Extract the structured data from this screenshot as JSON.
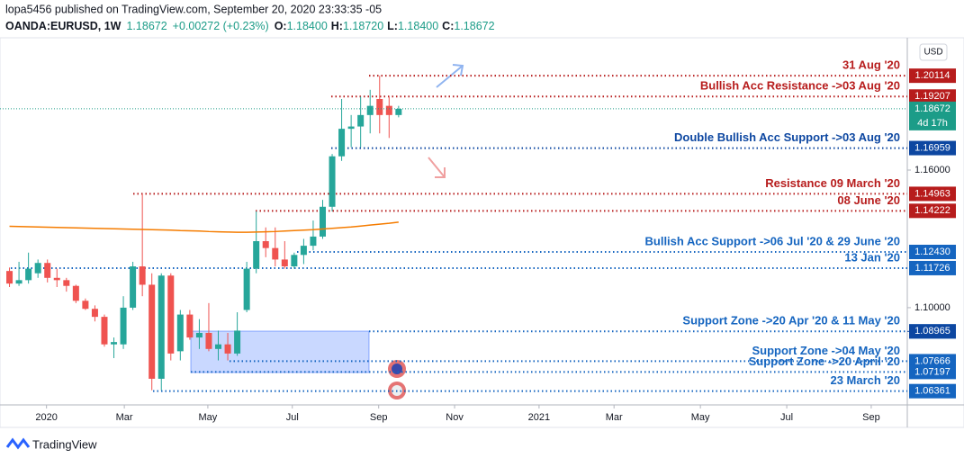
{
  "header": {
    "publisher": "lopa5456 published on TradingView.com, September 20, 2020 23:33:35 -05",
    "symbol": "OANDA:EURUSD, 1W",
    "last": "1.18672",
    "change": "+0.00272 (+0.23%)",
    "open_label": "O:",
    "open": "1.18400",
    "high_label": "H:",
    "high": "1.18720",
    "low_label": "L:",
    "low": "1.18400",
    "close_label": "C:",
    "close": "1.18672",
    "currency": "USD"
  },
  "footer": {
    "brand": "TradingView"
  },
  "chart_data": {
    "type": "candlestick",
    "open": [
      1.116,
      1.1105,
      1.112,
      1.115,
      1.1195,
      1.113,
      1.112,
      1.1095,
      1.103,
      1.0995,
      1.096,
      1.084,
      1.084,
      1.1,
      1.118,
      1.11,
      1.069,
      1.114,
      1.081,
      1.097,
      1.087,
      1.089,
      1.082,
      1.084,
      1.08,
      1.099,
      1.117,
      1.129,
      1.126,
      1.121,
      1.118,
      1.123,
      1.127,
      1.131,
      1.144,
      1.166,
      1.178,
      1.179,
      1.184,
      1.191,
      1.188,
      1.184
    ],
    "high": [
      1.1175,
      1.12,
      1.124,
      1.121,
      1.121,
      1.117,
      1.113,
      1.11,
      1.104,
      1.101,
      1.097,
      1.087,
      1.105,
      1.12,
      1.1495,
      1.115,
      1.115,
      1.115,
      1.099,
      1.099,
      1.095,
      1.102,
      1.09,
      1.089,
      1.098,
      1.12,
      1.142,
      1.135,
      1.135,
      1.129,
      1.124,
      1.13,
      1.138,
      1.147,
      1.167,
      1.191,
      1.184,
      1.192,
      1.195,
      1.2011,
      1.192,
      1.188
    ],
    "low": [
      1.109,
      1.1095,
      1.1105,
      1.113,
      1.111,
      1.109,
      1.107,
      1.102,
      1.099,
      1.094,
      1.083,
      1.078,
      1.082,
      1.099,
      1.105,
      1.064,
      1.064,
      1.077,
      1.077,
      1.086,
      1.082,
      1.081,
      1.077,
      1.077,
      1.079,
      1.098,
      1.115,
      1.122,
      1.118,
      1.117,
      1.117,
      1.119,
      1.125,
      1.13,
      1.142,
      1.164,
      1.17,
      1.17,
      1.176,
      1.176,
      1.174,
      1.183
    ],
    "close": [
      1.1105,
      1.112,
      1.117,
      1.1195,
      1.113,
      1.112,
      1.1095,
      1.103,
      1.0995,
      1.096,
      1.084,
      1.085,
      1.1,
      1.118,
      1.11,
      1.069,
      1.114,
      1.08,
      1.097,
      1.087,
      1.089,
      1.082,
      1.084,
      1.08,
      1.09,
      1.117,
      1.129,
      1.126,
      1.121,
      1.118,
      1.123,
      1.127,
      1.131,
      1.144,
      1.166,
      1.178,
      1.179,
      1.184,
      1.188,
      1.184,
      1.184,
      1.1867
    ],
    "ma": [
      1.1355,
      1.1354,
      1.1353,
      1.1352,
      1.1351,
      1.135,
      1.1349,
      1.1348,
      1.1347,
      1.1346,
      1.1345,
      1.1344,
      1.1343,
      1.1342,
      1.1341,
      1.134,
      1.1339,
      1.1338,
      1.1336,
      1.1335,
      1.1334,
      1.1332,
      1.1331,
      1.133,
      1.1329,
      1.1329,
      1.133,
      1.1331,
      1.1332,
      1.1334,
      1.1336,
      1.1338,
      1.134,
      1.1343,
      1.1346,
      1.1349,
      1.1352,
      1.1356,
      1.136,
      1.1364,
      1.1368,
      1.1373
    ],
    "up_color": "#26a69a",
    "down_color": "#ef5350",
    "ma_color": "#f57c00",
    "ylim": [
      1.0576,
      1.2165
    ],
    "xlim": [
      -1,
      94.6
    ],
    "yticks": [
      {
        "value": 1.16,
        "label": "1.16000"
      },
      {
        "value": 1.1,
        "label": "1.10000"
      }
    ],
    "xticks": [
      {
        "value": 3.9,
        "label": "2020"
      },
      {
        "value": 12.1,
        "label": "Mar"
      },
      {
        "value": 20.9,
        "label": "May"
      },
      {
        "value": 29.8,
        "label": "Jul"
      },
      {
        "value": 38.9,
        "label": "Sep"
      },
      {
        "value": 46.9,
        "label": "Nov"
      },
      {
        "value": 55.8,
        "label": "2021"
      },
      {
        "value": 63.7,
        "label": "Mar"
      },
      {
        "value": 72.8,
        "label": "May"
      },
      {
        "value": 81.9,
        "label": "Jul"
      },
      {
        "value": 90.8,
        "label": "Sep"
      }
    ],
    "current": {
      "value": 1.18672,
      "color": "#1c9c88",
      "countdown": "4d 17h"
    },
    "levels": [
      {
        "value": 1.20114,
        "text": "31 Aug '20",
        "color": "#b71c1c"
      },
      {
        "value": 1.19207,
        "text": "Bullish Acc Resistance ->03 Aug '20",
        "color": "#b71c1c"
      },
      {
        "value": 1.16959,
        "text": "Double Bullish Acc Support ->03 Aug '20",
        "color": "#0d47a1"
      },
      {
        "value": 1.14963,
        "text": "Resistance 09 March '20",
        "color": "#b71c1c"
      },
      {
        "value": 1.14222,
        "text": "08 June '20",
        "color": "#b71c1c"
      },
      {
        "value": 1.1243,
        "tag": "1.12430",
        "text": "Bullish Acc Support ->06 Jul '20 & 29 June '20",
        "color": "#1565c0"
      },
      {
        "value": 1.11726,
        "text": "13 Jan '20",
        "color": "#1565c0"
      },
      {
        "value": 1.08968,
        "text": "Support Zone ->20 Apr '20  & 11 May '20",
        "color": "#1565c0"
      },
      {
        "value": 1.08965,
        "color": "#0d47a1"
      },
      {
        "value": 1.07666,
        "text": "Support Zone ->04 May '20",
        "color": "#1565c0"
      },
      {
        "value": 1.07197,
        "text": "Support Zone ->20 April '20",
        "color": "#1565c0"
      },
      {
        "value": 1.06361,
        "text": "23 March '20",
        "color": "#1565c0"
      }
    ]
  }
}
